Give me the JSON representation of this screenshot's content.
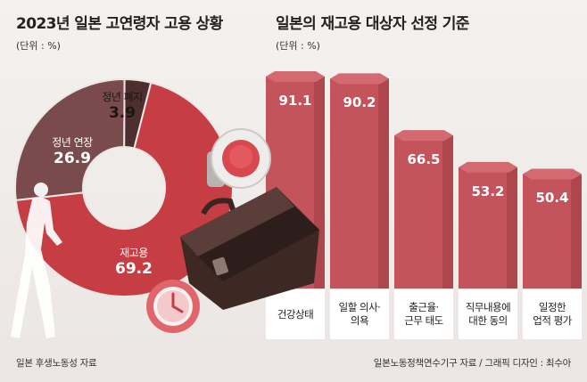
{
  "left_panel": {
    "title": "2023년 일본 고연령자 고용 상황",
    "unit": "(단위 : %)"
  },
  "right_panel": {
    "title": "일본의 재고용 대상자 선정 기준",
    "unit": "(단위 : %)"
  },
  "colors": {
    "red_segment": "#c63d44",
    "dark_segment": "#4e2f2f",
    "mid_segment": "#7a4b4c",
    "bar_main": "#c3545c",
    "bar_top": "#d36a71",
    "bar_side": "#9b3b42"
  },
  "chart_data": [
    {
      "type": "pie",
      "title": "2023년 일본 고연령자 고용 상황",
      "unit": "%",
      "slices": [
        {
          "label": "재고용",
          "value": 69.2
        },
        {
          "label": "정년 연장",
          "value": 26.9
        },
        {
          "label": "정년 폐지",
          "value": 3.9
        }
      ]
    },
    {
      "type": "bar",
      "title": "일본의 재고용 대상자 선정 기준",
      "unit": "%",
      "categories": [
        "건강상태",
        "일할 의사·\n의욕",
        "출근율·\n근무 태도",
        "직무내용에\n대한 동의",
        "일정한\n업적 평가"
      ],
      "values": [
        91.1,
        90.2,
        66.5,
        53.2,
        50.4
      ]
    }
  ],
  "footer": {
    "left_source": "일본 후생노동성 자료",
    "right_source": "일본노동정책연수기구 자료 / 그래픽 디자인 : 최수아"
  }
}
